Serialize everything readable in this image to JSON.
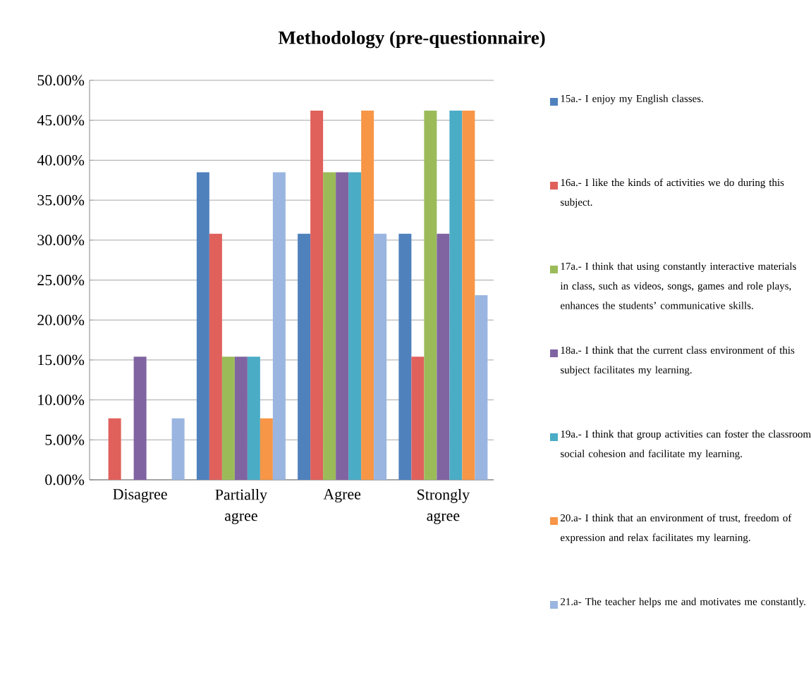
{
  "chart_data": {
    "type": "bar",
    "title": "Methodology (pre-questionnaire)",
    "categories": [
      "Disagree",
      "Partially agree",
      "Agree",
      "Strongly agree"
    ],
    "series": [
      {
        "name": "15a.- I enjoy my English classes.",
        "color": "#4f81bd",
        "values": [
          0,
          38.5,
          30.8,
          30.8
        ]
      },
      {
        "name": "16a.- I like the kinds of activities we do during this subject.",
        "color": "#e0605c",
        "values": [
          7.7,
          30.8,
          46.2,
          15.4
        ]
      },
      {
        "name": "17a.- I think that using constantly interactive materials in class, such as videos, songs, games and role plays, enhances the students’ communicative skills.",
        "color": "#9bbb59",
        "values": [
          0,
          15.4,
          38.5,
          46.2
        ]
      },
      {
        "name": "18a.- I think that the current class environment of this subject facilitates my learning.",
        "color": "#8064a2",
        "values": [
          15.4,
          15.4,
          38.5,
          30.8
        ]
      },
      {
        "name": "19a.- I think that group activities can foster the classroom social cohesion and facilitate my learning.",
        "color": "#4bacc6",
        "values": [
          0,
          15.4,
          38.5,
          46.2
        ]
      },
      {
        "name": "20.a- I think that an environment of trust, freedom of expression and relax facilitates my learning.",
        "color": "#f79646",
        "values": [
          0,
          7.7,
          46.2,
          46.2
        ]
      },
      {
        "name": "21.a- The teacher helps me and motivates me constantly.",
        "color": "#9ab5e0",
        "values": [
          7.7,
          38.5,
          30.8,
          23.1
        ]
      }
    ],
    "ylim": [
      0,
      50
    ],
    "yticks": [
      {
        "value": 0,
        "label": "0.00%"
      },
      {
        "value": 5,
        "label": "5.00%"
      },
      {
        "value": 10,
        "label": "10.00%"
      },
      {
        "value": 15,
        "label": "15.00%"
      },
      {
        "value": 20,
        "label": "20.00%"
      },
      {
        "value": 25,
        "label": "25.00%"
      },
      {
        "value": 30,
        "label": "30.00%"
      },
      {
        "value": 35,
        "label": "35.00%"
      },
      {
        "value": 40,
        "label": "40.00%"
      },
      {
        "value": 45,
        "label": "45.00%"
      },
      {
        "value": 50,
        "label": "50.00%"
      }
    ],
    "grid": "y",
    "legend": "right"
  }
}
